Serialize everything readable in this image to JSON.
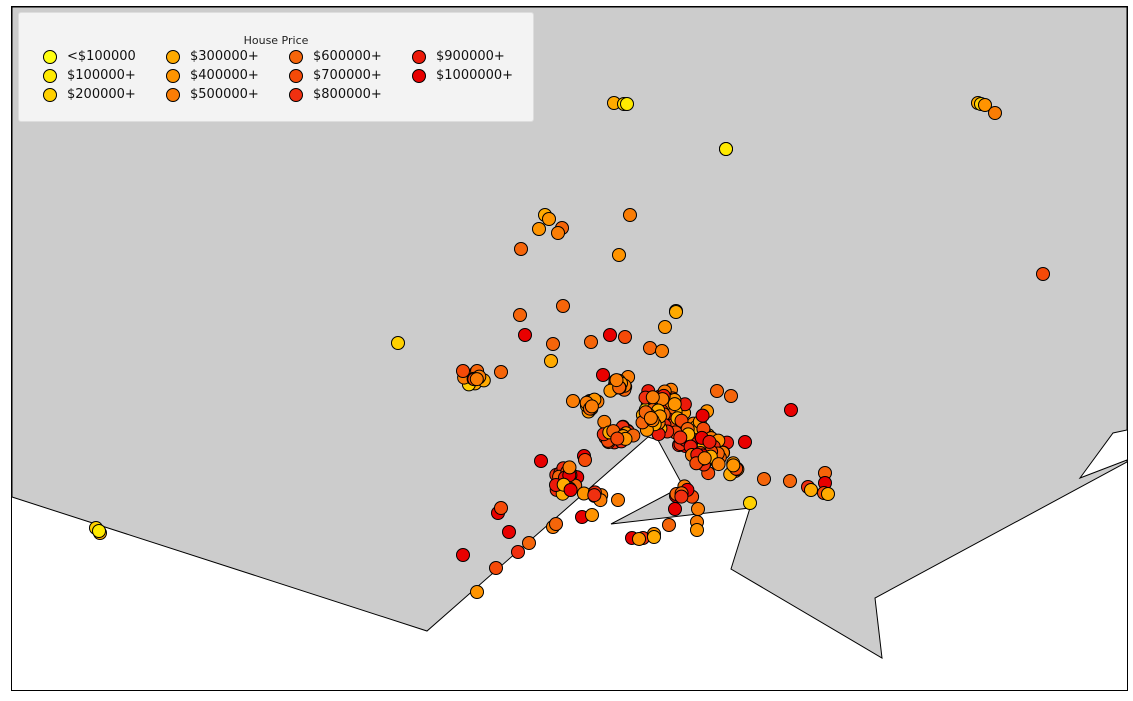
{
  "map": {
    "land_color": "#cccccc",
    "water_color": "#ffffff",
    "outline_color": "#000000"
  },
  "legend": {
    "title": "House Price",
    "items": [
      {
        "label": "<$100000",
        "color": "#ffff12"
      },
      {
        "label": "$100000+",
        "color": "#ffea00"
      },
      {
        "label": "$200000+",
        "color": "#ffd000"
      },
      {
        "label": "$300000+",
        "color": "#ffaa00"
      },
      {
        "label": "$400000+",
        "color": "#ff9400"
      },
      {
        "label": "$500000+",
        "color": "#fa7d05"
      },
      {
        "label": "$600000+",
        "color": "#f5650a"
      },
      {
        "label": "$700000+",
        "color": "#f54a08"
      },
      {
        "label": "$800000+",
        "color": "#f03010"
      },
      {
        "label": "$900000+",
        "color": "#ec1a0a"
      },
      {
        "label": "$1000000+",
        "color": "#e80000"
      }
    ]
  }
}
